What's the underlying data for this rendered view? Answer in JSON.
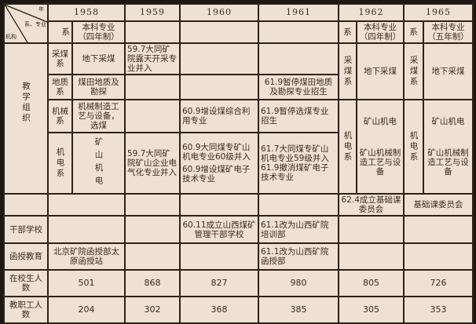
{
  "header": {
    "corner": {
      "year": "年",
      "dept_major": "系、专业",
      "org": "机构"
    },
    "years": [
      "1958",
      "1959",
      "1960",
      "1961",
      "1962",
      "1965"
    ],
    "dept_label": "系",
    "major_4yr": "本科专业（四年制）",
    "major_5yr": "本科专业（五年制）"
  },
  "teaching": {
    "label": "教学组织",
    "rows": {
      "mining": {
        "dept": "采煤系",
        "major": "地下采煤",
        "y1959": "59.7大同矿院露天开采专业并入"
      },
      "geology": {
        "dept": "地质系",
        "major": "煤田地质及勘探",
        "y1961": "61.9暂停煤田地质及勘探专业招生"
      },
      "machinery": {
        "dept": "机械系",
        "major": "机械制造工艺与设备，选煤",
        "y1960": "60.9增设煤综合利用专业",
        "y1961": "61.9暂停选煤专业招生"
      },
      "electromech": {
        "dept": "机电系",
        "major": "矿山机电",
        "y1959": "59.7大同矿院矿山企业电气化专业并入",
        "y1960a": "60.9大同煤专矿山机电专业60级并入",
        "y1960b": "60.9增设煤矿电子技术专业",
        "y1961a": "61.7大同煤专矿山机电专业59级并入",
        "y1961b": "61.9撤消煤矿电子技术专业"
      }
    },
    "y1962": {
      "mining_dept": "采煤系",
      "mining_major": "地下采煤",
      "em_dept": "机电系",
      "em_major1": "矿山机电",
      "em_major2": "矿山机械制造工艺与设备",
      "basic": "62.4成立基础课委员会"
    },
    "y1965": {
      "mining_dept": "采煤系",
      "mining_major": "地下采煤",
      "em_dept": "机电系",
      "em_major1": "矿山机电",
      "em_major2": "矿山机械制造工艺与设备",
      "basic": "基础课委员会"
    }
  },
  "cadre": {
    "label": "干部学校",
    "y1960": "60.11成立山西煤矿管理干部学校",
    "y1961": "61.1改为山西矿院培训部"
  },
  "correspondence": {
    "label": "函授教育",
    "y1958": "北京矿院函授部太原函授站",
    "y1961": "61.1改为山西矿院函授部"
  },
  "students": {
    "label": "在校生人数",
    "values": [
      "501",
      "868",
      "827",
      "980",
      "805",
      "726"
    ]
  },
  "staff": {
    "label": "教职工人数",
    "values": [
      "204",
      "302",
      "368",
      "385",
      "305",
      "353"
    ]
  }
}
